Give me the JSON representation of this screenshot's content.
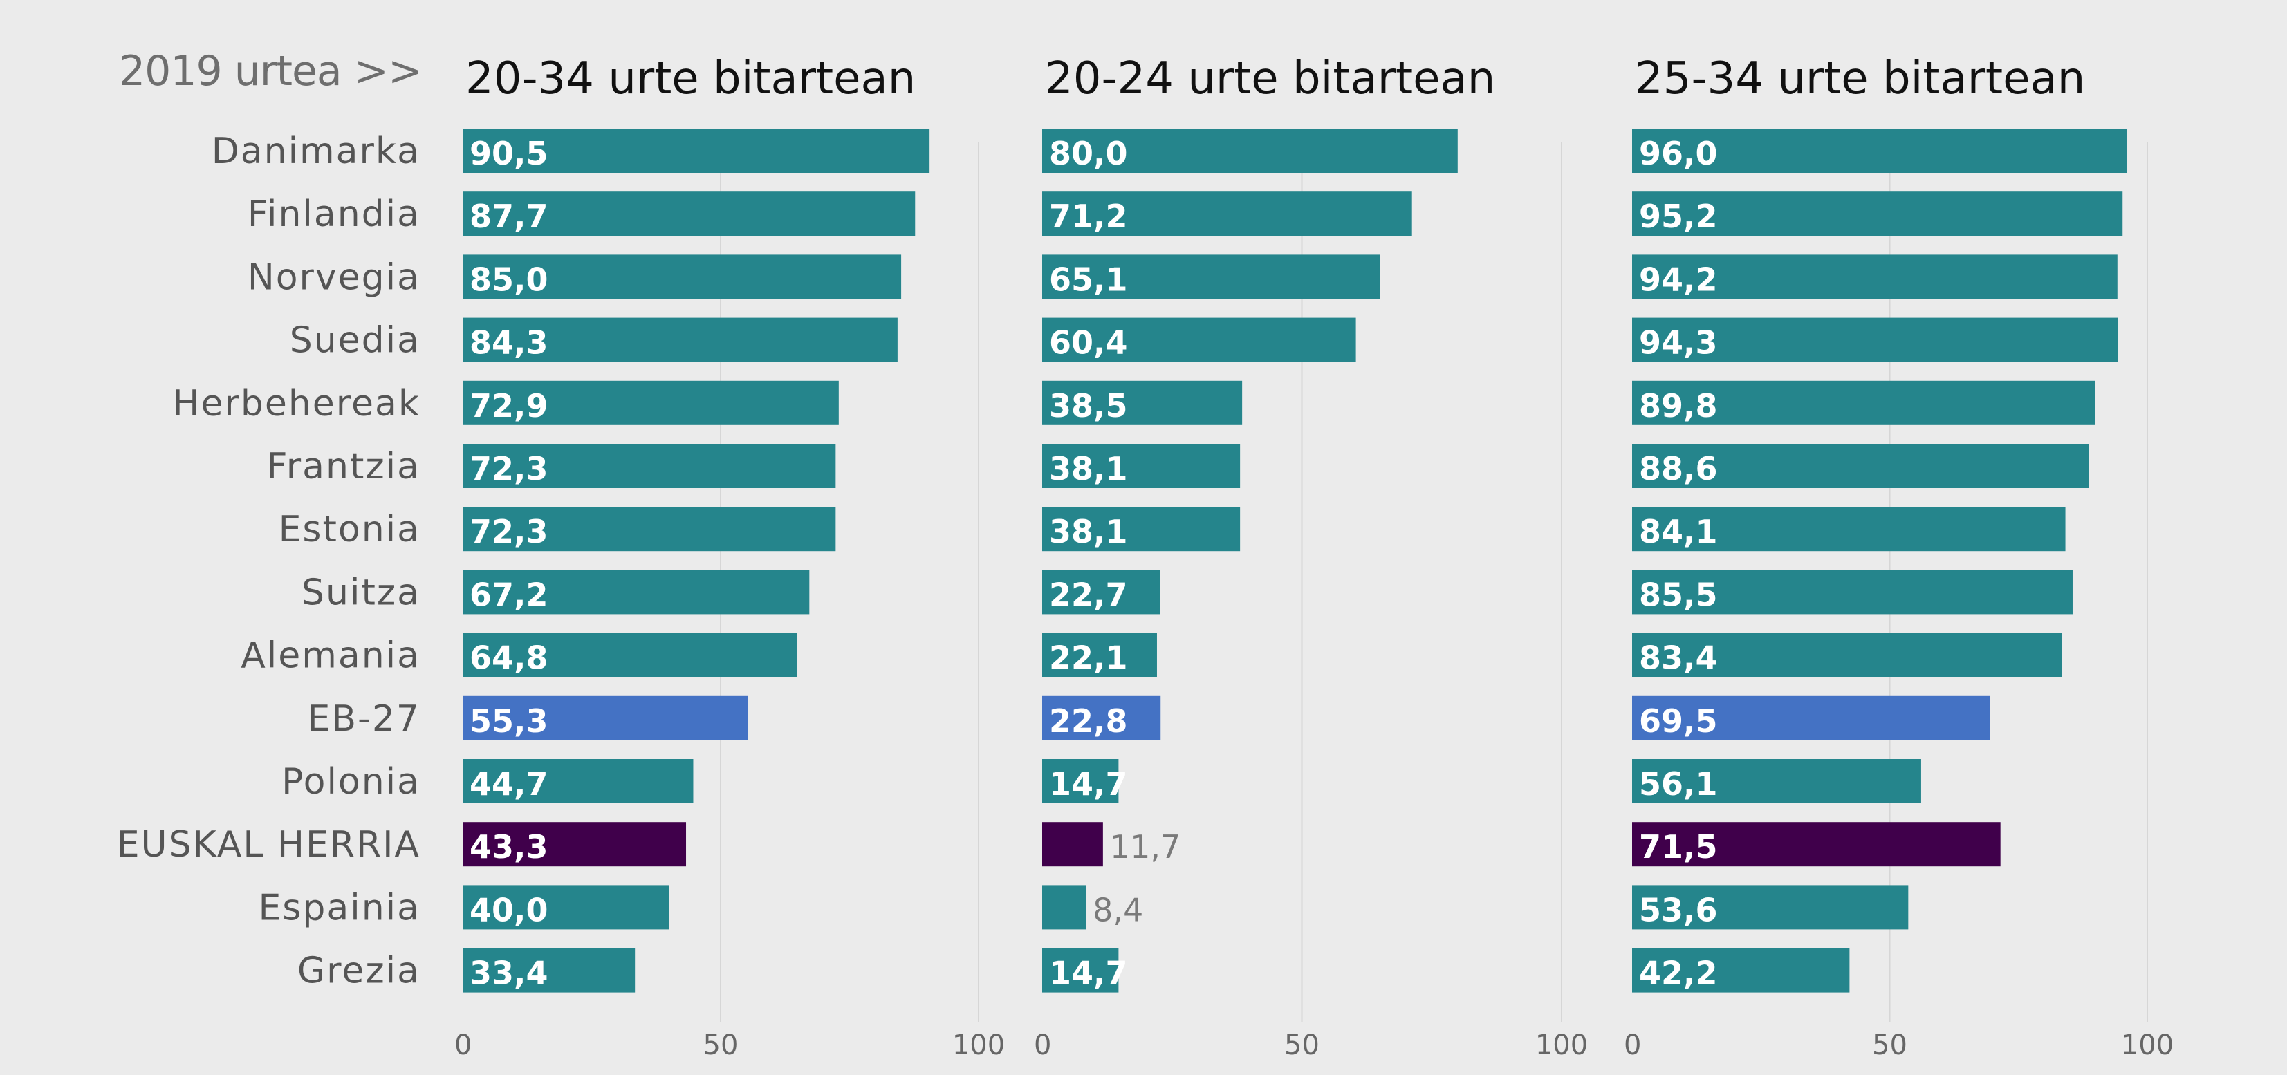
{
  "header": {
    "year_label": "2019 urtea >>"
  },
  "colors": {
    "background": "#ebebeb",
    "default_bar": "#25858c",
    "eu_bar": "#4472c4",
    "basque_bar": "#40004b",
    "grid": "#d6d6d6",
    "country_text": "#555555",
    "tick_text": "#666666",
    "bar_label": "#ffffff",
    "outside_label": "#7a7a7a"
  },
  "chart_data": [
    {
      "type": "bar",
      "orientation": "horizontal",
      "title": "20-34 urte bitartean",
      "categories": [
        "Danimarka",
        "Finlandia",
        "Norvegia",
        "Suedia",
        "Herbehereak",
        "Frantzia",
        "Estonia",
        "Suitza",
        "Alemania",
        "EB-27",
        "Polonia",
        "EUSKAL HERRIA",
        "Espainia",
        "Grezia"
      ],
      "values": [
        90.5,
        87.7,
        85.0,
        84.3,
        72.9,
        72.3,
        72.3,
        67.2,
        64.8,
        55.3,
        44.7,
        43.3,
        40.0,
        33.4
      ],
      "value_labels": [
        "90,5",
        "87,7",
        "85,0",
        "84,3",
        "72,9",
        "72,3",
        "72,3",
        "67,2",
        "64,8",
        "55,3",
        "44,7",
        "43,3",
        "40,0",
        "33,4"
      ],
      "xlim": [
        0,
        100
      ],
      "xticks": [
        0,
        50,
        100
      ],
      "grid": true,
      "highlight": {
        "EB-27": "eu",
        "EUSKAL HERRIA": "basque"
      }
    },
    {
      "type": "bar",
      "orientation": "horizontal",
      "title": "20-24 urte bitartean",
      "categories": [
        "Danimarka",
        "Finlandia",
        "Norvegia",
        "Suedia",
        "Herbehereak",
        "Frantzia",
        "Estonia",
        "Suitza",
        "Alemania",
        "EB-27",
        "Polonia",
        "EUSKAL HERRIA",
        "Espainia",
        "Grezia"
      ],
      "values": [
        80.0,
        71.2,
        65.1,
        60.4,
        38.5,
        38.1,
        38.1,
        22.7,
        22.1,
        22.8,
        14.7,
        11.7,
        8.4,
        14.7
      ],
      "value_labels": [
        "80,0",
        "71,2",
        "65,1",
        "60,4",
        "38,5",
        "38,1",
        "38,1",
        "22,7",
        "22,1",
        "22,8",
        "14,7",
        "11,7",
        "8,4",
        "14,7"
      ],
      "xlim": [
        0,
        100
      ],
      "xticks": [
        0,
        50,
        100
      ],
      "grid": true,
      "highlight": {
        "EB-27": "eu",
        "EUSKAL HERRIA": "basque"
      }
    },
    {
      "type": "bar",
      "orientation": "horizontal",
      "title": "25-34 urte bitartean",
      "categories": [
        "Danimarka",
        "Finlandia",
        "Norvegia",
        "Suedia",
        "Herbehereak",
        "Frantzia",
        "Estonia",
        "Suitza",
        "Alemania",
        "EB-27",
        "Polonia",
        "EUSKAL HERRIA",
        "Espainia",
        "Grezia"
      ],
      "values": [
        96.0,
        95.2,
        94.2,
        94.3,
        89.8,
        88.6,
        84.1,
        85.5,
        83.4,
        69.5,
        56.1,
        71.5,
        53.6,
        42.2
      ],
      "value_labels": [
        "96,0",
        "95,2",
        "94,2",
        "94,3",
        "89,8",
        "88,6",
        "84,1",
        "85,5",
        "83,4",
        "69,5",
        "56,1",
        "71,5",
        "53,6",
        "42,2"
      ],
      "xlim": [
        0,
        100
      ],
      "xticks": [
        0,
        50,
        100
      ],
      "grid": true,
      "highlight": {
        "EB-27": "eu",
        "EUSKAL HERRIA": "basque"
      }
    }
  ]
}
